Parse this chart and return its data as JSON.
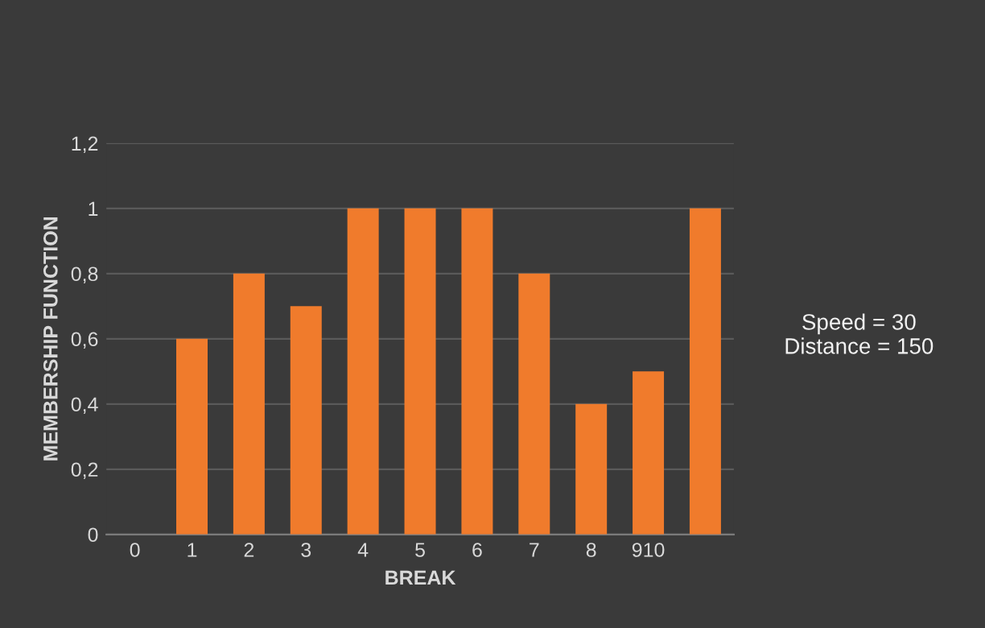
{
  "chart_data": {
    "type": "bar",
    "xlabel": "BREAK",
    "ylabel": "MEMBERSHIP FUNCTION",
    "categories": [
      "0",
      "1",
      "2",
      "3",
      "4",
      "5",
      "6",
      "7",
      "8",
      "910",
      null
    ],
    "values": [
      0,
      0.6,
      0.8,
      0.7,
      1,
      1,
      1,
      0.8,
      0.4,
      0.5,
      1
    ],
    "color": "#f07b2c",
    "ylim": [
      0,
      1.2
    ],
    "yticks": [
      {
        "value": 0,
        "label": "0"
      },
      {
        "value": 0.2,
        "label": "0,2"
      },
      {
        "value": 0.4,
        "label": "0,4"
      },
      {
        "value": 0.6,
        "label": "0,6"
      },
      {
        "value": 0.8,
        "label": "0,8"
      },
      {
        "value": 1,
        "label": "1"
      },
      {
        "value": 1.2,
        "label": "1,2"
      }
    ],
    "grid": "y",
    "annotations": [
      "Speed = 30\nDistance = 150"
    ]
  }
}
